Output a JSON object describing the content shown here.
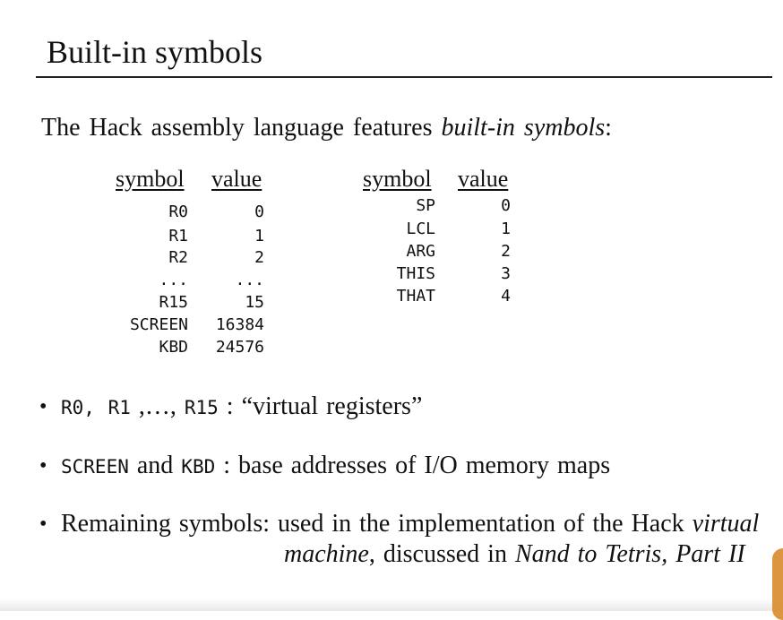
{
  "title": "Built-in symbols",
  "intro": {
    "prefix": "The Hack assembly language features ",
    "emph": "built-in symbols",
    "suffix": ":"
  },
  "left_table": {
    "headers": {
      "symbol": "symbol",
      "value": "value"
    },
    "rows": [
      {
        "symbol": "R0",
        "value": "0"
      },
      {
        "symbol": "R1",
        "value": "1"
      },
      {
        "symbol": "R2",
        "value": "2"
      },
      {
        "symbol": "...",
        "value": "..."
      },
      {
        "symbol": "R15",
        "value": "15"
      },
      {
        "symbol": "SCREEN",
        "value": "16384"
      },
      {
        "symbol": "KBD",
        "value": "24576"
      }
    ]
  },
  "right_table": {
    "headers": {
      "symbol": "symbol",
      "value": "value"
    },
    "rows": [
      {
        "symbol": "SP",
        "value": "0"
      },
      {
        "symbol": "LCL",
        "value": "1"
      },
      {
        "symbol": "ARG",
        "value": "2"
      },
      {
        "symbol": "THIS",
        "value": "3"
      },
      {
        "symbol": "THAT",
        "value": "4"
      }
    ]
  },
  "bullets": {
    "b1": {
      "dot": "•",
      "code1": "R0, R1",
      "mid": " ,…, ",
      "code2": "R15",
      "text": " : “virtual registers”"
    },
    "b2": {
      "dot": "•",
      "code1": "SCREEN",
      "mid": " and ",
      "code2": "KBD",
      "text": " : base addresses of I/O memory maps"
    },
    "b3": {
      "dot": "•",
      "line1_text": "Remaining symbols: used in the implementation of the Hack ",
      "line1_emph": "virtual",
      "line2_emph1": "machine",
      "line2_text": ", discussed in ",
      "line2_emph2": "Nand to Tetris, Part II"
    }
  }
}
